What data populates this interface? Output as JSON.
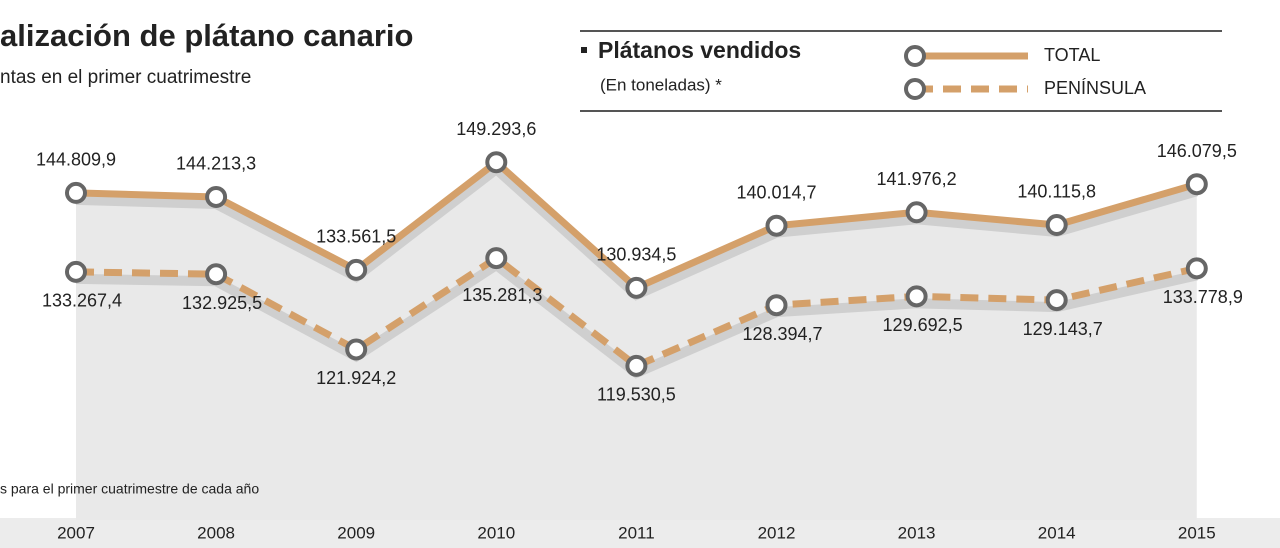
{
  "chart_data": {
    "type": "line",
    "title": "alización de plátano canario",
    "subtitle": "ntas en el primer cuatrimestre",
    "legend_title": "Plátanos vendidos",
    "legend_subtitle": "(En toneladas) *",
    "footnote": "s para el primer cuatrimestre de cada año",
    "categories": [
      "2007",
      "2008",
      "2009",
      "2010",
      "2011",
      "2012",
      "2013",
      "2014",
      "2015"
    ],
    "ylim": [
      97000,
      173000
    ],
    "series": [
      {
        "name": "TOTAL",
        "color": "#d4a06a",
        "dashed": false,
        "values": [
          144809.9,
          144213.3,
          133561.5,
          149293.6,
          130934.5,
          140014.7,
          141976.2,
          140115.8,
          146079.5
        ],
        "value_labels": [
          "144.809,9",
          "144.213,3",
          "133.561,5",
          "149.293,6",
          "130.934,5",
          "140.014,7",
          "141.976,2",
          "140.115,8",
          "146.079,5"
        ]
      },
      {
        "name": "PENÍNSULA",
        "color": "#d4a06a",
        "dashed": true,
        "values": [
          133267.4,
          132925.5,
          121924.2,
          135281.3,
          119530.5,
          128394.7,
          129692.5,
          129143.7,
          133778.9
        ],
        "value_labels": [
          "133.267,4",
          "132.925,5",
          "121.924,2",
          "135.281,3",
          "119.530,5",
          "128.394,7",
          "129.692,5",
          "129.143,7",
          "133.778,9"
        ]
      }
    ]
  }
}
